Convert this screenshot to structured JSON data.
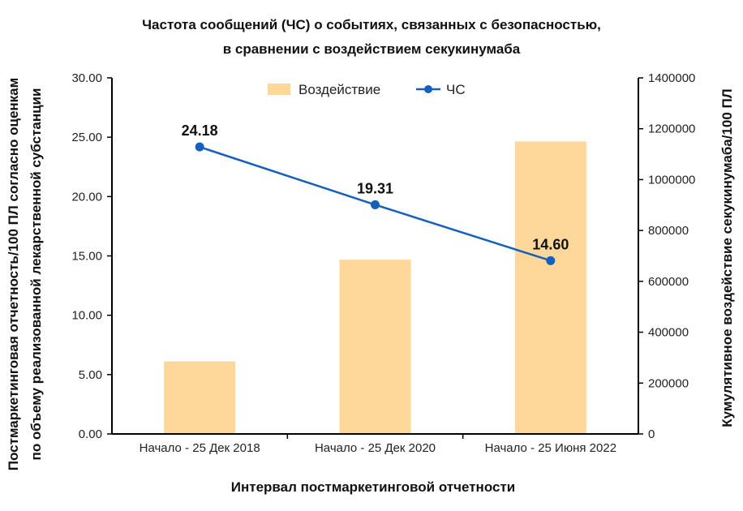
{
  "chart_data": {
    "type": "bar+line",
    "title_lines": [
      "Частота сообщений (ЧС) о событиях, связанных с безопасностью,",
      "в сравнении с воздействием секукинумаба"
    ],
    "xlabel": "Интервал постмаркетинговой отчетности",
    "ylabel_left_lines": [
      "Постмаркетинговая отчетность/100 ПЛ согласно оценкам",
      "по объему реализованной лекарственной субстанции"
    ],
    "ylabel_right": "Кумулятивное воздействие секукинумаба/100 ПЛ",
    "categories": [
      "Начало - 25 Дек 2018",
      "Начало - 25 Дек 2020",
      "Начало - 25 Июня 2022"
    ],
    "ylim_left": [
      0,
      30
    ],
    "yticks_left": [
      "0.00",
      "5.00",
      "10.00",
      "15.00",
      "20.00",
      "25.00",
      "30.00"
    ],
    "ylim_right": [
      0,
      1400000
    ],
    "yticks_right": [
      "0",
      "200000",
      "400000",
      "600000",
      "800000",
      "1000000",
      "1200000",
      "1400000"
    ],
    "series": [
      {
        "name": "Воздействие",
        "type": "bar",
        "axis": "right",
        "color": "#FDD89A",
        "values": [
          285000,
          685000,
          1150000
        ]
      },
      {
        "name": "ЧС",
        "type": "line",
        "axis": "left",
        "color": "#1560BD",
        "values": [
          24.18,
          19.31,
          14.6
        ],
        "labels": [
          "24.18",
          "19.31",
          "14.60"
        ]
      }
    ],
    "legend_position": "top-center",
    "grid": false
  }
}
